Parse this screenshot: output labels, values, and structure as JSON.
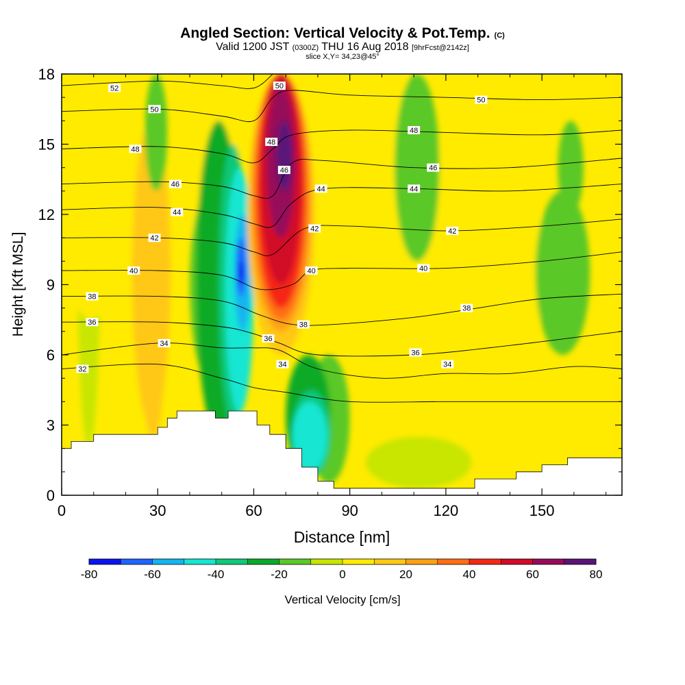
{
  "title": {
    "main": "Angled Section: Vertical Velocity & Pot.Temp.",
    "unit_tag": "(C)",
    "valid_prefix": "Valid 1200 JST",
    "valid_zone": "(0300Z)",
    "valid_date": "THU 16 Aug 2018",
    "forecast": "[9hrFcst@2142z]",
    "slice": "slice X,Y= 34,23@45°"
  },
  "chart_data": {
    "type": "heatmap",
    "title": "Angled Section: Vertical Velocity & Pot.Temp.",
    "xlabel": "Distance [nm]",
    "ylabel": "Height [Kft MSL]",
    "xlim": [
      0,
      175
    ],
    "ylim": [
      0,
      18
    ],
    "x_ticks": [
      0,
      30,
      60,
      90,
      120,
      150
    ],
    "y_ticks": [
      0,
      3,
      6,
      9,
      12,
      15,
      18
    ],
    "colorbar": {
      "label": "Vertical Velocity [cm/s]",
      "tick_labels": [
        "-80",
        "-60",
        "-40",
        "-20",
        "0",
        "20",
        "40",
        "60",
        "80"
      ],
      "bounds": [
        -80,
        -70,
        -60,
        -50,
        -40,
        -30,
        -20,
        -10,
        0,
        10,
        20,
        30,
        40,
        50,
        60,
        70,
        80
      ],
      "colors": [
        "#0a14f0",
        "#1e64ff",
        "#14b4f0",
        "#14e6d2",
        "#10c878",
        "#0aaa28",
        "#5ac828",
        "#c8e600",
        "#ffeb00",
        "#ffc814",
        "#ffa014",
        "#ff6e14",
        "#f52814",
        "#d20a28",
        "#960a5a",
        "#5a1478"
      ]
    },
    "velocity_regions": [
      {
        "value": -5,
        "x": [
          5,
          12
        ],
        "y": [
          2,
          18
        ]
      },
      {
        "value": -5,
        "x": [
          95,
          128
        ],
        "y": [
          0.3,
          2.5
        ]
      },
      {
        "value": 5,
        "x": [
          0,
          18
        ],
        "y": [
          7.5,
          18
        ]
      },
      {
        "value": 5,
        "x": [
          20,
          28
        ],
        "y": [
          1.5,
          16
        ]
      },
      {
        "value": 5,
        "x": [
          40,
          56
        ],
        "y": [
          8,
          18
        ]
      },
      {
        "value": 5,
        "x": [
          82,
          120
        ],
        "y": [
          8,
          18
        ]
      },
      {
        "value": 5,
        "x": [
          118,
          152
        ],
        "y": [
          5.5,
          14
        ]
      },
      {
        "value": 5,
        "x": [
          150,
          175
        ],
        "y": [
          0,
          4
        ]
      },
      {
        "value": 15,
        "x": [
          22,
          34
        ],
        "y": [
          3,
          16
        ]
      },
      {
        "value": 15,
        "x": [
          25,
          32
        ],
        "y": [
          2.5,
          9
        ]
      },
      {
        "value": -15,
        "x": [
          26,
          33
        ],
        "y": [
          13,
          18
        ]
      },
      {
        "value": -15,
        "x": [
          40,
          52
        ],
        "y": [
          5,
          13
        ]
      },
      {
        "value": -15,
        "x": [
          77,
          90
        ],
        "y": [
          0.5,
          6
        ]
      },
      {
        "value": -15,
        "x": [
          104,
          118
        ],
        "y": [
          10,
          18
        ]
      },
      {
        "value": -15,
        "x": [
          148,
          165
        ],
        "y": [
          6,
          13
        ]
      },
      {
        "value": -15,
        "x": [
          155,
          163
        ],
        "y": [
          12,
          16
        ]
      },
      {
        "value": -25,
        "x": [
          42,
          56
        ],
        "y": [
          2.5,
          16
        ]
      },
      {
        "value": -25,
        "x": [
          70,
          84
        ],
        "y": [
          0.8,
          6
        ]
      },
      {
        "value": -35,
        "x": [
          49,
          58
        ],
        "y": [
          3,
          15
        ]
      },
      {
        "value": -35,
        "x": [
          72,
          84
        ],
        "y": [
          0.8,
          4.5
        ]
      },
      {
        "value": -45,
        "x": [
          51,
          60
        ],
        "y": [
          3.5,
          14
        ]
      },
      {
        "value": -45,
        "x": [
          72,
          83
        ],
        "y": [
          1,
          4
        ]
      },
      {
        "value": -55,
        "x": [
          54,
          59
        ],
        "y": [
          7,
          12
        ]
      },
      {
        "value": -65,
        "x": [
          54.5,
          57.5
        ],
        "y": [
          8.5,
          11
        ]
      },
      {
        "value": -75,
        "x": [
          55.2,
          57
        ],
        "y": [
          9,
          10
        ]
      },
      {
        "value": 10,
        "x": [
          58,
          79
        ],
        "y": [
          6,
          18
        ]
      },
      {
        "value": 20,
        "x": [
          59,
          78
        ],
        "y": [
          7,
          18
        ]
      },
      {
        "value": 30,
        "x": [
          60,
          77
        ],
        "y": [
          7.5,
          18
        ]
      },
      {
        "value": 40,
        "x": [
          61,
          76
        ],
        "y": [
          8,
          18
        ]
      },
      {
        "value": 50,
        "x": [
          62,
          75
        ],
        "y": [
          9,
          18
        ]
      },
      {
        "value": 60,
        "x": [
          64,
          73
        ],
        "y": [
          11,
          17.5
        ]
      },
      {
        "value": 70,
        "x": [
          67,
          72
        ],
        "y": [
          13,
          16
        ]
      },
      {
        "value": 75,
        "x": [
          69,
          71
        ],
        "y": [
          13.5,
          15.5
        ]
      }
    ],
    "terrain": {
      "x": [
        0,
        3,
        3,
        10,
        10,
        30,
        30,
        33,
        33,
        36,
        36,
        48,
        48,
        52,
        52,
        61,
        61,
        65,
        65,
        70,
        70,
        75,
        75,
        80,
        80,
        85,
        85,
        90,
        90,
        129,
        129,
        142,
        142,
        150,
        150,
        158,
        158,
        175
      ],
      "y": [
        2,
        2,
        2.3,
        2.3,
        2.6,
        2.6,
        2.9,
        2.9,
        3.3,
        3.3,
        3.6,
        3.6,
        3.3,
        3.3,
        3.6,
        3.6,
        3.0,
        3.0,
        2.6,
        2.6,
        2.0,
        2.0,
        1.2,
        1.2,
        0.6,
        0.6,
        0.3,
        0.3,
        0.3,
        0.3,
        0.7,
        0.7,
        1.0,
        1.0,
        1.3,
        1.3,
        1.6,
        1.6
      ]
    },
    "theta_series": [
      {
        "name": "32",
        "label_at": [
          6.5,
          5.4
        ],
        "points": [
          [
            0,
            5.4
          ],
          [
            30,
            5.6
          ],
          [
            50,
            5.0
          ],
          [
            60,
            4.6
          ],
          [
            70,
            4.4
          ],
          [
            90,
            4.0
          ],
          [
            120,
            4.0
          ],
          [
            150,
            4.0
          ],
          [
            175,
            4.0
          ]
        ]
      },
      {
        "name": "34",
        "label_at": [
          32,
          6.5
        ],
        "label_at_2": [
          69,
          5.6
        ],
        "label_at_3": [
          120.5,
          5.6
        ],
        "points": [
          [
            0,
            6.0
          ],
          [
            30,
            6.5
          ],
          [
            50,
            6.3
          ],
          [
            60,
            6.3
          ],
          [
            68,
            6.2
          ],
          [
            80,
            5.4
          ],
          [
            100,
            5.0
          ],
          [
            120,
            5.2
          ],
          [
            140,
            5.2
          ],
          [
            160,
            5.5
          ],
          [
            175,
            5.4
          ]
        ]
      },
      {
        "name": "36",
        "label_at": [
          9.5,
          7.4
        ],
        "label_at_2": [
          64.5,
          6.7
        ],
        "label_at_3": [
          110.5,
          6.1
        ],
        "points": [
          [
            0,
            7.4
          ],
          [
            30,
            7.4
          ],
          [
            50,
            7.2
          ],
          [
            60,
            6.9
          ],
          [
            68,
            6.5
          ],
          [
            80,
            6.0
          ],
          [
            110,
            6.0
          ],
          [
            140,
            6.4
          ],
          [
            175,
            7.0
          ]
        ]
      },
      {
        "name": "38",
        "label_at": [
          9.5,
          8.5
        ],
        "label_at_2": [
          75.5,
          7.3
        ],
        "label_at_3": [
          126.5,
          8.0
        ],
        "points": [
          [
            0,
            8.5
          ],
          [
            30,
            8.5
          ],
          [
            50,
            8.3
          ],
          [
            62,
            7.7
          ],
          [
            72,
            7.3
          ],
          [
            85,
            7.3
          ],
          [
            110,
            7.6
          ],
          [
            130,
            8.0
          ],
          [
            150,
            8.4
          ],
          [
            175,
            8.6
          ]
        ]
      },
      {
        "name": "40",
        "label_at": [
          22.5,
          9.6
        ],
        "label_at_2": [
          78,
          9.6
        ],
        "label_at_3": [
          113,
          9.7
        ],
        "points": [
          [
            0,
            9.6
          ],
          [
            30,
            9.6
          ],
          [
            50,
            9.4
          ],
          [
            62,
            8.8
          ],
          [
            72,
            9.0
          ],
          [
            78,
            9.6
          ],
          [
            90,
            9.7
          ],
          [
            120,
            9.7
          ],
          [
            150,
            10.0
          ],
          [
            175,
            10.4
          ]
        ]
      },
      {
        "name": "42",
        "label_at": [
          29,
          11.0
        ],
        "label_at_2": [
          79,
          11.4
        ],
        "label_at_3": [
          122,
          11.3
        ],
        "points": [
          [
            0,
            11.0
          ],
          [
            30,
            11.0
          ],
          [
            50,
            10.8
          ],
          [
            60,
            10.4
          ],
          [
            66,
            10.3
          ],
          [
            76,
            11.4
          ],
          [
            90,
            11.5
          ],
          [
            120,
            11.3
          ],
          [
            150,
            11.5
          ],
          [
            175,
            11.8
          ]
        ]
      },
      {
        "name": "44",
        "label_at": [
          36,
          12.1
        ],
        "label_at_2": [
          81,
          13.1
        ],
        "label_at_3": [
          110,
          13.1
        ],
        "points": [
          [
            0,
            12.2
          ],
          [
            30,
            12.3
          ],
          [
            50,
            12.0
          ],
          [
            60,
            11.6
          ],
          [
            66,
            11.5
          ],
          [
            72,
            12.5
          ],
          [
            82,
            13.1
          ],
          [
            110,
            13.1
          ],
          [
            140,
            13.0
          ],
          [
            175,
            13.3
          ]
        ]
      },
      {
        "name": "46",
        "label_at": [
          35.5,
          13.3
        ],
        "label_at_2": [
          69.5,
          13.9
        ],
        "label_at_3": [
          116,
          14.0
        ],
        "points": [
          [
            0,
            13.3
          ],
          [
            30,
            13.4
          ],
          [
            50,
            13.2
          ],
          [
            60,
            12.8
          ],
          [
            66,
            12.8
          ],
          [
            72,
            14.2
          ],
          [
            82,
            14.3
          ],
          [
            110,
            14.0
          ],
          [
            140,
            14.0
          ],
          [
            175,
            14.4
          ]
        ]
      },
      {
        "name": "48",
        "label_at": [
          23,
          14.8
        ],
        "label_at_2": [
          65.5,
          15.1
        ],
        "label_at_3": [
          110,
          15.6
        ],
        "points": [
          [
            0,
            14.8
          ],
          [
            30,
            14.9
          ],
          [
            50,
            14.6
          ],
          [
            60,
            14.2
          ],
          [
            66,
            14.8
          ],
          [
            72,
            15.4
          ],
          [
            90,
            15.6
          ],
          [
            120,
            15.5
          ],
          [
            150,
            15.4
          ],
          [
            175,
            15.6
          ]
        ]
      },
      {
        "name": "50",
        "label_at": [
          29,
          16.5
        ],
        "label_at_2": [
          68,
          17.5
        ],
        "label_at_3": [
          131,
          16.9
        ],
        "points": [
          [
            0,
            16.4
          ],
          [
            30,
            16.5
          ],
          [
            50,
            16.2
          ],
          [
            60,
            16.0
          ],
          [
            66,
            17.0
          ],
          [
            72,
            17.3
          ],
          [
            90,
            17.1
          ],
          [
            120,
            17.0
          ],
          [
            150,
            16.9
          ],
          [
            175,
            17.0
          ]
        ]
      },
      {
        "name": "52",
        "label_at": [
          16.5,
          17.4
        ],
        "points": [
          [
            0,
            17.5
          ],
          [
            30,
            17.7
          ],
          [
            50,
            17.5
          ],
          [
            60,
            17.4
          ],
          [
            66,
            18.0
          ]
        ]
      }
    ]
  }
}
